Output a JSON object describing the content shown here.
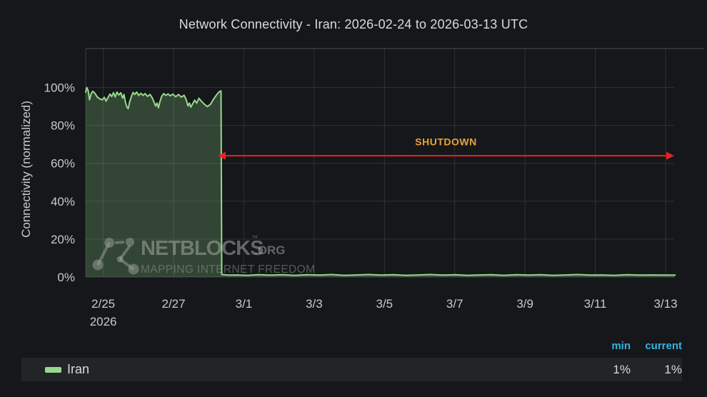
{
  "title": "Network Connectivity - Iran: 2026-02-24 to 2026-03-13 UTC",
  "y_axis_label": "Connectivity (normalized)",
  "watermark": {
    "brand": "NETBLOCKS",
    "trademark": "™",
    "suffix": ".ORG",
    "tagline": "MAPPING INTERNET FREEDOM"
  },
  "legend": {
    "header_color": "#33b5e5",
    "columns": [
      "min",
      "current"
    ],
    "series": [
      {
        "name": "Iran",
        "color": "#96d98d",
        "min": "1%",
        "current": "1%"
      }
    ]
  },
  "chart_data": {
    "type": "area",
    "title": "Network Connectivity - Iran: 2026-02-24 to 2026-03-13 UTC",
    "xlabel": "",
    "ylabel": "Connectivity (normalized)",
    "x_unit": "days since 2026-02-24 00:00 UTC",
    "x_range": [
      0.5,
      17.27
    ],
    "y_range": [
      0,
      100
    ],
    "grid": true,
    "legend_position": "bottom",
    "y_ticks": {
      "values": [
        0,
        20,
        40,
        60,
        80,
        100
      ],
      "labels": [
        "0%",
        "20%",
        "40%",
        "60%",
        "80%",
        "100%"
      ]
    },
    "x_ticks": {
      "values": [
        1,
        3,
        5,
        7,
        9,
        11,
        13,
        15,
        17
      ],
      "labels": [
        "2/25",
        "2/27",
        "3/1",
        "3/3",
        "3/5",
        "3/7",
        "3/9",
        "3/11",
        "3/13"
      ],
      "year_label": "2026",
      "year_tick": 1
    },
    "series": [
      {
        "name": "Iran",
        "color": "#96d98d",
        "fill_opacity": 0.24,
        "points": [
          [
            0.5,
            97.5
          ],
          [
            0.53,
            100
          ],
          [
            0.57,
            98.5
          ],
          [
            0.61,
            93.5
          ],
          [
            0.65,
            96.5
          ],
          [
            0.7,
            98
          ],
          [
            0.76,
            97
          ],
          [
            0.83,
            95
          ],
          [
            0.9,
            94
          ],
          [
            0.97,
            93.5
          ],
          [
            1.03,
            94.8
          ],
          [
            1.08,
            92.8
          ],
          [
            1.13,
            94.5
          ],
          [
            1.19,
            96.5
          ],
          [
            1.24,
            95.2
          ],
          [
            1.29,
            97.3
          ],
          [
            1.34,
            95.0
          ],
          [
            1.39,
            97.6
          ],
          [
            1.44,
            96.0
          ],
          [
            1.5,
            97.2
          ],
          [
            1.55,
            94.3
          ],
          [
            1.59,
            96.3
          ],
          [
            1.63,
            92.3
          ],
          [
            1.67,
            89.8
          ],
          [
            1.71,
            88.8
          ],
          [
            1.75,
            92.3
          ],
          [
            1.8,
            95.3
          ],
          [
            1.85,
            97.4
          ],
          [
            1.9,
            96.3
          ],
          [
            1.95,
            97.6
          ],
          [
            2.01,
            95.8
          ],
          [
            2.07,
            97.0
          ],
          [
            2.13,
            95.8
          ],
          [
            2.19,
            96.8
          ],
          [
            2.26,
            95.3
          ],
          [
            2.33,
            96.3
          ],
          [
            2.4,
            94.3
          ],
          [
            2.45,
            92.0
          ],
          [
            2.49,
            90.2
          ],
          [
            2.53,
            91.8
          ],
          [
            2.57,
            89.3
          ],
          [
            2.61,
            92.3
          ],
          [
            2.66,
            95.2
          ],
          [
            2.72,
            96.8
          ],
          [
            2.78,
            95.8
          ],
          [
            2.84,
            96.6
          ],
          [
            2.91,
            95.6
          ],
          [
            2.98,
            96.5
          ],
          [
            3.06,
            95.1
          ],
          [
            3.14,
            96.3
          ],
          [
            3.22,
            94.9
          ],
          [
            3.3,
            95.9
          ],
          [
            3.36,
            93.6
          ],
          [
            3.41,
            90.3
          ],
          [
            3.45,
            91.8
          ],
          [
            3.49,
            89.6
          ],
          [
            3.54,
            91.3
          ],
          [
            3.6,
            93.3
          ],
          [
            3.66,
            91.8
          ],
          [
            3.72,
            94.3
          ],
          [
            3.79,
            92.8
          ],
          [
            3.87,
            91.3
          ],
          [
            3.96,
            89.9
          ],
          [
            4.05,
            91.1
          ],
          [
            4.13,
            93.6
          ],
          [
            4.21,
            95.8
          ],
          [
            4.29,
            97.6
          ],
          [
            4.35,
            98.2
          ],
          [
            4.37,
            1.3
          ],
          [
            4.55,
            1.0
          ],
          [
            4.8,
            1.1
          ],
          [
            5.1,
            0.9
          ],
          [
            5.4,
            1.2
          ],
          [
            5.75,
            1.0
          ],
          [
            6.1,
            1.2
          ],
          [
            6.45,
            0.9
          ],
          [
            6.8,
            1.2
          ],
          [
            7.15,
            1.0
          ],
          [
            7.5,
            1.3
          ],
          [
            7.85,
            0.9
          ],
          [
            8.2,
            1.1
          ],
          [
            8.55,
            1.3
          ],
          [
            8.9,
            1.0
          ],
          [
            9.25,
            1.2
          ],
          [
            9.6,
            0.9
          ],
          [
            9.95,
            1.1
          ],
          [
            10.3,
            1.3
          ],
          [
            10.65,
            1.0
          ],
          [
            11.0,
            1.2
          ],
          [
            11.35,
            0.9
          ],
          [
            11.7,
            1.1
          ],
          [
            12.05,
            1.2
          ],
          [
            12.4,
            0.9
          ],
          [
            12.75,
            1.2
          ],
          [
            13.1,
            1.0
          ],
          [
            13.45,
            1.2
          ],
          [
            13.8,
            0.9
          ],
          [
            14.15,
            1.1
          ],
          [
            14.5,
            1.3
          ],
          [
            14.85,
            1.0
          ],
          [
            15.2,
            1.1
          ],
          [
            15.55,
            0.9
          ],
          [
            15.9,
            1.2
          ],
          [
            16.25,
            1.0
          ],
          [
            16.6,
            1.1
          ],
          [
            16.95,
            1.0
          ],
          [
            17.27,
            1.0
          ]
        ]
      }
    ],
    "annotations": [
      {
        "type": "double-arrow",
        "label": "SHUTDOWN",
        "x1": 4.3,
        "x2": 17.27,
        "y_pct": 64,
        "label_y_pct": 71,
        "arrow_color": "#ed2020",
        "label_color": "#e9a23a"
      }
    ]
  }
}
